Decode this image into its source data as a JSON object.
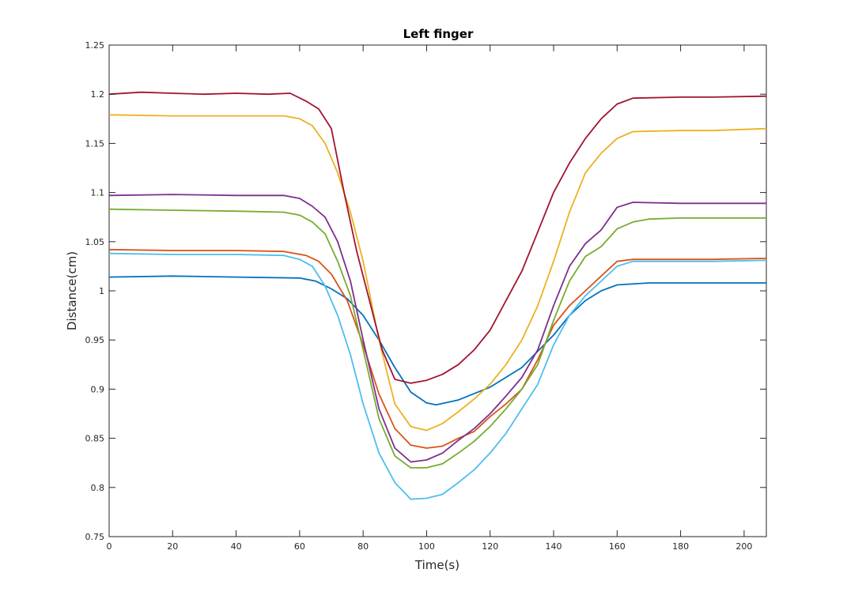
{
  "chart_data": {
    "type": "line",
    "title": "Left finger",
    "xlabel": "Time(s)",
    "ylabel": "Distance(cm)",
    "xlim": [
      0,
      207
    ],
    "ylim": [
      0.75,
      1.25
    ],
    "xticks": [
      "0",
      "20",
      "40",
      "60",
      "80",
      "100",
      "120",
      "140",
      "160",
      "180",
      "200"
    ],
    "yticks": [
      "0.75",
      "0.8",
      "0.85",
      "0.9",
      "0.95",
      "1",
      "1.05",
      "1.1",
      "1.15",
      "1.2",
      "1.25"
    ],
    "grid": false,
    "legend": "none",
    "series": [
      {
        "color": "#0072BD",
        "points": [
          [
            0,
            1.014
          ],
          [
            20,
            1.015
          ],
          [
            40,
            1.014
          ],
          [
            60,
            1.013
          ],
          [
            65,
            1.01
          ],
          [
            70,
            1.002
          ],
          [
            75,
            0.992
          ],
          [
            80,
            0.975
          ],
          [
            85,
            0.95
          ],
          [
            90,
            0.922
          ],
          [
            95,
            0.897
          ],
          [
            100,
            0.886
          ],
          [
            103,
            0.884
          ],
          [
            110,
            0.889
          ],
          [
            120,
            0.902
          ],
          [
            130,
            0.922
          ],
          [
            140,
            0.955
          ],
          [
            145,
            0.975
          ],
          [
            150,
            0.99
          ],
          [
            155,
            1.0
          ],
          [
            160,
            1.006
          ],
          [
            170,
            1.008
          ],
          [
            180,
            1.008
          ],
          [
            190,
            1.008
          ],
          [
            207,
            1.008
          ]
        ]
      },
      {
        "color": "#D95319",
        "points": [
          [
            0,
            1.042
          ],
          [
            20,
            1.041
          ],
          [
            40,
            1.041
          ],
          [
            55,
            1.04
          ],
          [
            62,
            1.036
          ],
          [
            66,
            1.03
          ],
          [
            70,
            1.017
          ],
          [
            75,
            0.99
          ],
          [
            80,
            0.945
          ],
          [
            85,
            0.895
          ],
          [
            90,
            0.86
          ],
          [
            95,
            0.843
          ],
          [
            100,
            0.84
          ],
          [
            105,
            0.842
          ],
          [
            110,
            0.85
          ],
          [
            115,
            0.857
          ],
          [
            120,
            0.872
          ],
          [
            125,
            0.885
          ],
          [
            130,
            0.9
          ],
          [
            135,
            0.93
          ],
          [
            140,
            0.965
          ],
          [
            145,
            0.985
          ],
          [
            150,
            1.0
          ],
          [
            155,
            1.015
          ],
          [
            160,
            1.03
          ],
          [
            165,
            1.032
          ],
          [
            180,
            1.032
          ],
          [
            190,
            1.032
          ],
          [
            207,
            1.033
          ]
        ]
      },
      {
        "color": "#EDB120",
        "points": [
          [
            0,
            1.179
          ],
          [
            20,
            1.178
          ],
          [
            40,
            1.178
          ],
          [
            55,
            1.178
          ],
          [
            60,
            1.175
          ],
          [
            64,
            1.168
          ],
          [
            68,
            1.15
          ],
          [
            72,
            1.12
          ],
          [
            76,
            1.08
          ],
          [
            80,
            1.03
          ],
          [
            85,
            0.95
          ],
          [
            90,
            0.885
          ],
          [
            95,
            0.862
          ],
          [
            100,
            0.858
          ],
          [
            105,
            0.865
          ],
          [
            110,
            0.877
          ],
          [
            115,
            0.89
          ],
          [
            120,
            0.905
          ],
          [
            125,
            0.925
          ],
          [
            130,
            0.95
          ],
          [
            135,
            0.985
          ],
          [
            140,
            1.03
          ],
          [
            145,
            1.08
          ],
          [
            150,
            1.12
          ],
          [
            155,
            1.14
          ],
          [
            160,
            1.155
          ],
          [
            165,
            1.162
          ],
          [
            180,
            1.163
          ],
          [
            190,
            1.163
          ],
          [
            207,
            1.165
          ]
        ]
      },
      {
        "color": "#7E2F8E",
        "points": [
          [
            0,
            1.097
          ],
          [
            20,
            1.098
          ],
          [
            40,
            1.097
          ],
          [
            55,
            1.097
          ],
          [
            60,
            1.094
          ],
          [
            64,
            1.086
          ],
          [
            68,
            1.075
          ],
          [
            72,
            1.05
          ],
          [
            76,
            1.01
          ],
          [
            80,
            0.95
          ],
          [
            85,
            0.88
          ],
          [
            90,
            0.84
          ],
          [
            95,
            0.826
          ],
          [
            100,
            0.828
          ],
          [
            105,
            0.835
          ],
          [
            110,
            0.848
          ],
          [
            115,
            0.86
          ],
          [
            120,
            0.875
          ],
          [
            125,
            0.893
          ],
          [
            130,
            0.912
          ],
          [
            135,
            0.94
          ],
          [
            140,
            0.985
          ],
          [
            145,
            1.025
          ],
          [
            150,
            1.048
          ],
          [
            155,
            1.062
          ],
          [
            160,
            1.085
          ],
          [
            165,
            1.09
          ],
          [
            180,
            1.089
          ],
          [
            190,
            1.089
          ],
          [
            207,
            1.089
          ]
        ]
      },
      {
        "color": "#77AC30",
        "points": [
          [
            0,
            1.083
          ],
          [
            20,
            1.082
          ],
          [
            40,
            1.081
          ],
          [
            55,
            1.08
          ],
          [
            60,
            1.077
          ],
          [
            64,
            1.07
          ],
          [
            68,
            1.058
          ],
          [
            72,
            1.03
          ],
          [
            76,
            0.995
          ],
          [
            80,
            0.94
          ],
          [
            85,
            0.87
          ],
          [
            90,
            0.832
          ],
          [
            95,
            0.82
          ],
          [
            100,
            0.82
          ],
          [
            105,
            0.824
          ],
          [
            110,
            0.835
          ],
          [
            115,
            0.847
          ],
          [
            120,
            0.862
          ],
          [
            125,
            0.88
          ],
          [
            130,
            0.9
          ],
          [
            135,
            0.925
          ],
          [
            140,
            0.97
          ],
          [
            145,
            1.01
          ],
          [
            150,
            1.035
          ],
          [
            155,
            1.045
          ],
          [
            160,
            1.063
          ],
          [
            165,
            1.07
          ],
          [
            170,
            1.073
          ],
          [
            180,
            1.074
          ],
          [
            190,
            1.074
          ],
          [
            207,
            1.074
          ]
        ]
      },
      {
        "color": "#4DBEEE",
        "points": [
          [
            0,
            1.038
          ],
          [
            20,
            1.037
          ],
          [
            40,
            1.037
          ],
          [
            55,
            1.036
          ],
          [
            60,
            1.032
          ],
          [
            64,
            1.025
          ],
          [
            68,
            1.005
          ],
          [
            72,
            0.975
          ],
          [
            76,
            0.935
          ],
          [
            80,
            0.885
          ],
          [
            85,
            0.835
          ],
          [
            90,
            0.805
          ],
          [
            95,
            0.788
          ],
          [
            100,
            0.789
          ],
          [
            105,
            0.793
          ],
          [
            110,
            0.805
          ],
          [
            115,
            0.818
          ],
          [
            120,
            0.835
          ],
          [
            125,
            0.855
          ],
          [
            130,
            0.88
          ],
          [
            135,
            0.905
          ],
          [
            140,
            0.945
          ],
          [
            145,
            0.975
          ],
          [
            150,
            0.995
          ],
          [
            155,
            1.01
          ],
          [
            160,
            1.025
          ],
          [
            165,
            1.03
          ],
          [
            180,
            1.03
          ],
          [
            190,
            1.03
          ],
          [
            207,
            1.031
          ]
        ]
      },
      {
        "color": "#A2142F",
        "points": [
          [
            0,
            1.2
          ],
          [
            10,
            1.202
          ],
          [
            20,
            1.201
          ],
          [
            30,
            1.2
          ],
          [
            40,
            1.201
          ],
          [
            50,
            1.2
          ],
          [
            57,
            1.201
          ],
          [
            62,
            1.193
          ],
          [
            66,
            1.185
          ],
          [
            70,
            1.165
          ],
          [
            74,
            1.1
          ],
          [
            78,
            1.04
          ],
          [
            82,
            0.99
          ],
          [
            86,
            0.94
          ],
          [
            90,
            0.91
          ],
          [
            95,
            0.906
          ],
          [
            100,
            0.909
          ],
          [
            105,
            0.915
          ],
          [
            110,
            0.925
          ],
          [
            115,
            0.94
          ],
          [
            120,
            0.96
          ],
          [
            125,
            0.99
          ],
          [
            130,
            1.02
          ],
          [
            135,
            1.06
          ],
          [
            140,
            1.1
          ],
          [
            145,
            1.13
          ],
          [
            150,
            1.155
          ],
          [
            155,
            1.175
          ],
          [
            160,
            1.19
          ],
          [
            165,
            1.196
          ],
          [
            180,
            1.197
          ],
          [
            190,
            1.197
          ],
          [
            207,
            1.198
          ]
        ]
      }
    ]
  }
}
